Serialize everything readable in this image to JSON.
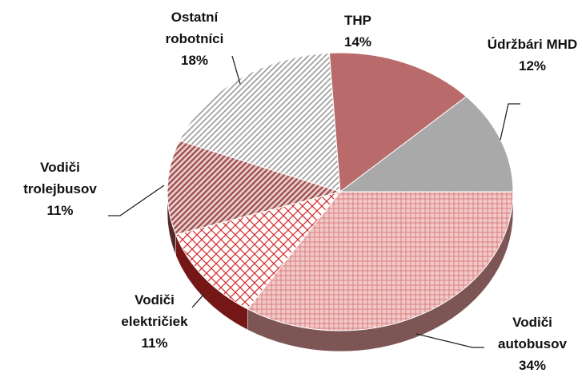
{
  "chart_data": {
    "type": "pie3d",
    "categories": [
      "Vodiči autobusov",
      "Vodiči električiek",
      "Vodiči trolejbusov",
      "Ostatní robotníci",
      "THP",
      "Údržbári MHD"
    ],
    "values": [
      34,
      11,
      11,
      18,
      14,
      12
    ],
    "value_labels": [
      "34%",
      "11%",
      "11%",
      "18%",
      "14%",
      "12%"
    ],
    "colors": [
      "#e39a9a",
      "#d42a2a",
      "#9c4a4a",
      "#9a9a9a",
      "#b96b6b",
      "#a9a9a9"
    ]
  }
}
